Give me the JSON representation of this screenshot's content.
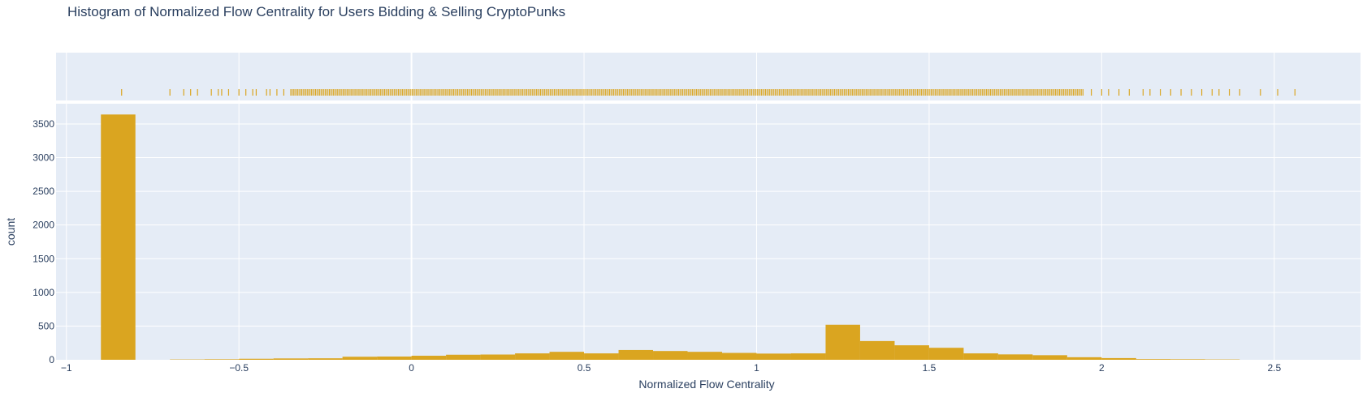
{
  "chart_data": {
    "type": "bar",
    "title": "Histogram of Normalized Flow Centrality for Users Bidding & Selling CryptoPunks",
    "xlabel": "Normalized Flow Centrality",
    "ylabel": "count",
    "xlim": [
      -1.03,
      2.75
    ],
    "ylim": [
      0,
      3800
    ],
    "x_ticks": [
      -1,
      -0.5,
      0,
      0.5,
      1,
      1.5,
      2,
      2.5
    ],
    "x_tick_labels": [
      "−1",
      "−0.5",
      "0",
      "0.5",
      "1",
      "1.5",
      "2",
      "2.5"
    ],
    "y_ticks": [
      0,
      500,
      1000,
      1500,
      2000,
      2500,
      3000,
      3500
    ],
    "y_tick_labels": [
      "0",
      "500",
      "1000",
      "1500",
      "2000",
      "2500",
      "3000",
      "3500"
    ],
    "grid": true,
    "bin_width": 0.1,
    "bins": [
      {
        "x0": -0.9,
        "x1": -0.8,
        "count": 3640
      },
      {
        "x0": -0.7,
        "x1": -0.6,
        "count": 5
      },
      {
        "x0": -0.6,
        "x1": -0.5,
        "count": 8
      },
      {
        "x0": -0.5,
        "x1": -0.4,
        "count": 15
      },
      {
        "x0": -0.4,
        "x1": -0.3,
        "count": 20
      },
      {
        "x0": -0.3,
        "x1": -0.2,
        "count": 22
      },
      {
        "x0": -0.2,
        "x1": -0.1,
        "count": 45
      },
      {
        "x0": -0.1,
        "x1": 0.0,
        "count": 48
      },
      {
        "x0": 0.0,
        "x1": 0.1,
        "count": 60
      },
      {
        "x0": 0.1,
        "x1": 0.2,
        "count": 75
      },
      {
        "x0": 0.2,
        "x1": 0.3,
        "count": 78
      },
      {
        "x0": 0.3,
        "x1": 0.4,
        "count": 95
      },
      {
        "x0": 0.4,
        "x1": 0.5,
        "count": 118
      },
      {
        "x0": 0.5,
        "x1": 0.6,
        "count": 95
      },
      {
        "x0": 0.6,
        "x1": 0.7,
        "count": 145
      },
      {
        "x0": 0.7,
        "x1": 0.8,
        "count": 130
      },
      {
        "x0": 0.8,
        "x1": 0.9,
        "count": 118
      },
      {
        "x0": 0.9,
        "x1": 1.0,
        "count": 102
      },
      {
        "x0": 1.0,
        "x1": 1.1,
        "count": 92
      },
      {
        "x0": 1.1,
        "x1": 1.2,
        "count": 95
      },
      {
        "x0": 1.2,
        "x1": 1.3,
        "count": 520
      },
      {
        "x0": 1.3,
        "x1": 1.4,
        "count": 278
      },
      {
        "x0": 1.4,
        "x1": 1.5,
        "count": 215
      },
      {
        "x0": 1.5,
        "x1": 1.6,
        "count": 178
      },
      {
        "x0": 1.6,
        "x1": 1.7,
        "count": 95
      },
      {
        "x0": 1.7,
        "x1": 1.8,
        "count": 80
      },
      {
        "x0": 1.8,
        "x1": 1.9,
        "count": 68
      },
      {
        "x0": 1.9,
        "x1": 2.0,
        "count": 38
      },
      {
        "x0": 2.0,
        "x1": 2.1,
        "count": 25
      },
      {
        "x0": 2.1,
        "x1": 2.2,
        "count": 10
      },
      {
        "x0": 2.2,
        "x1": 2.3,
        "count": 8
      },
      {
        "x0": 2.3,
        "x1": 2.4,
        "count": 5
      }
    ],
    "rug": {
      "dense_ranges": [
        [
          -0.35,
          1.95
        ]
      ],
      "sparse_values": [
        -0.84,
        -0.7,
        -0.66,
        -0.64,
        -0.62,
        -0.58,
        -0.56,
        -0.55,
        -0.53,
        -0.5,
        -0.48,
        -0.46,
        -0.45,
        -0.42,
        -0.41,
        -0.39,
        -0.37,
        1.97,
        2.0,
        2.02,
        2.05,
        2.08,
        2.12,
        2.14,
        2.17,
        2.2,
        2.23,
        2.26,
        2.29,
        2.32,
        2.34,
        2.37,
        2.4,
        2.46,
        2.51,
        2.56
      ]
    },
    "colors": {
      "bar": "#DAA520",
      "plot_bg": "#E5ECF6",
      "grid": "#ffffff",
      "text": "#2a3f5f"
    }
  }
}
